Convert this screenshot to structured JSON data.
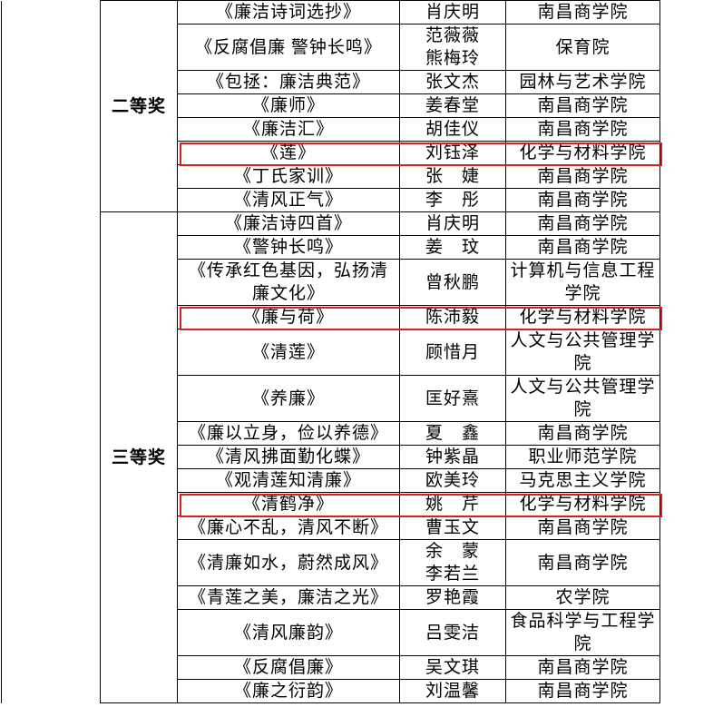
{
  "table": {
    "sections": [
      {
        "award": "二等奖",
        "rows": [
          {
            "title": "《廉洁诗词选抄》",
            "name": "肖庆明",
            "college": "南昌商学院"
          },
          {
            "title": "《反腐倡廉 警钟长鸣》",
            "name": "范薇薇\n熊梅玲",
            "college": "保育院"
          },
          {
            "title": "《包拯：廉洁典范》",
            "name": "张文杰",
            "college": "园林与艺术学院"
          },
          {
            "title": "《廉师》",
            "name": "姜春堂",
            "college": "南昌商学院"
          },
          {
            "title": "《廉洁汇》",
            "name": "胡佳仪",
            "college": "南昌商学院"
          },
          {
            "title": "《莲》",
            "name": "刘钰泽",
            "college": "化学与材料学院",
            "highlighted": true
          },
          {
            "title": "《丁氏家训》",
            "name": "张　婕",
            "college": "南昌商学院"
          },
          {
            "title": "《清风正气》",
            "name": "李　彤",
            "college": "南昌商学院"
          }
        ]
      },
      {
        "award": "三等奖",
        "rows": [
          {
            "title": "《廉洁诗四首》",
            "name": "肖庆明",
            "college": "南昌商学院"
          },
          {
            "title": "《警钟长鸣》",
            "name": "姜　玟",
            "college": "南昌商学院"
          },
          {
            "title": "《传承红色基因，弘扬清廉文化》",
            "name": "曾秋鹏",
            "college": "计算机与信息工程学院"
          },
          {
            "title": "《廉与荷》",
            "name": "陈沛毅",
            "college": "化学与材料学院",
            "highlighted": true
          },
          {
            "title": "《清莲》",
            "name": "顾惜月",
            "college": "人文与公共管理学院"
          },
          {
            "title": "《养廉》",
            "name": "匡好熹",
            "college": "人文与公共管理学院"
          },
          {
            "title": "《廉以立身，俭以养德》",
            "name": "夏　鑫",
            "college": "南昌商学院"
          },
          {
            "title": "《清风拂面勤化蝶》",
            "name": "钟紫晶",
            "college": "职业师范学院"
          },
          {
            "title": "《观清莲知清廉》",
            "name": "欧美玲",
            "college": "马克思主义学院"
          },
          {
            "title": "《清鹤净》",
            "name": "姚　芹",
            "college": "化学与材料学院",
            "highlighted": true
          },
          {
            "title": "《廉心不乱，清风不断》",
            "name": "曹玉文",
            "college": "南昌商学院"
          },
          {
            "title": "《清廉如水，蔚然成风》",
            "name": "余　蒙\n李若兰",
            "college": "南昌商学院"
          },
          {
            "title": "《青莲之美，廉洁之光》",
            "name": "罗艳霞",
            "college": "农学院"
          },
          {
            "title": "《清风廉韵》",
            "name": "吕雯洁",
            "college": "食品科学与工程学院"
          },
          {
            "title": "《反腐倡廉》",
            "name": "吴文琪",
            "college": "南昌商学院"
          },
          {
            "title": "《廉之衍韵》",
            "name": "刘温馨",
            "college": "南昌商学院"
          }
        ]
      }
    ]
  }
}
